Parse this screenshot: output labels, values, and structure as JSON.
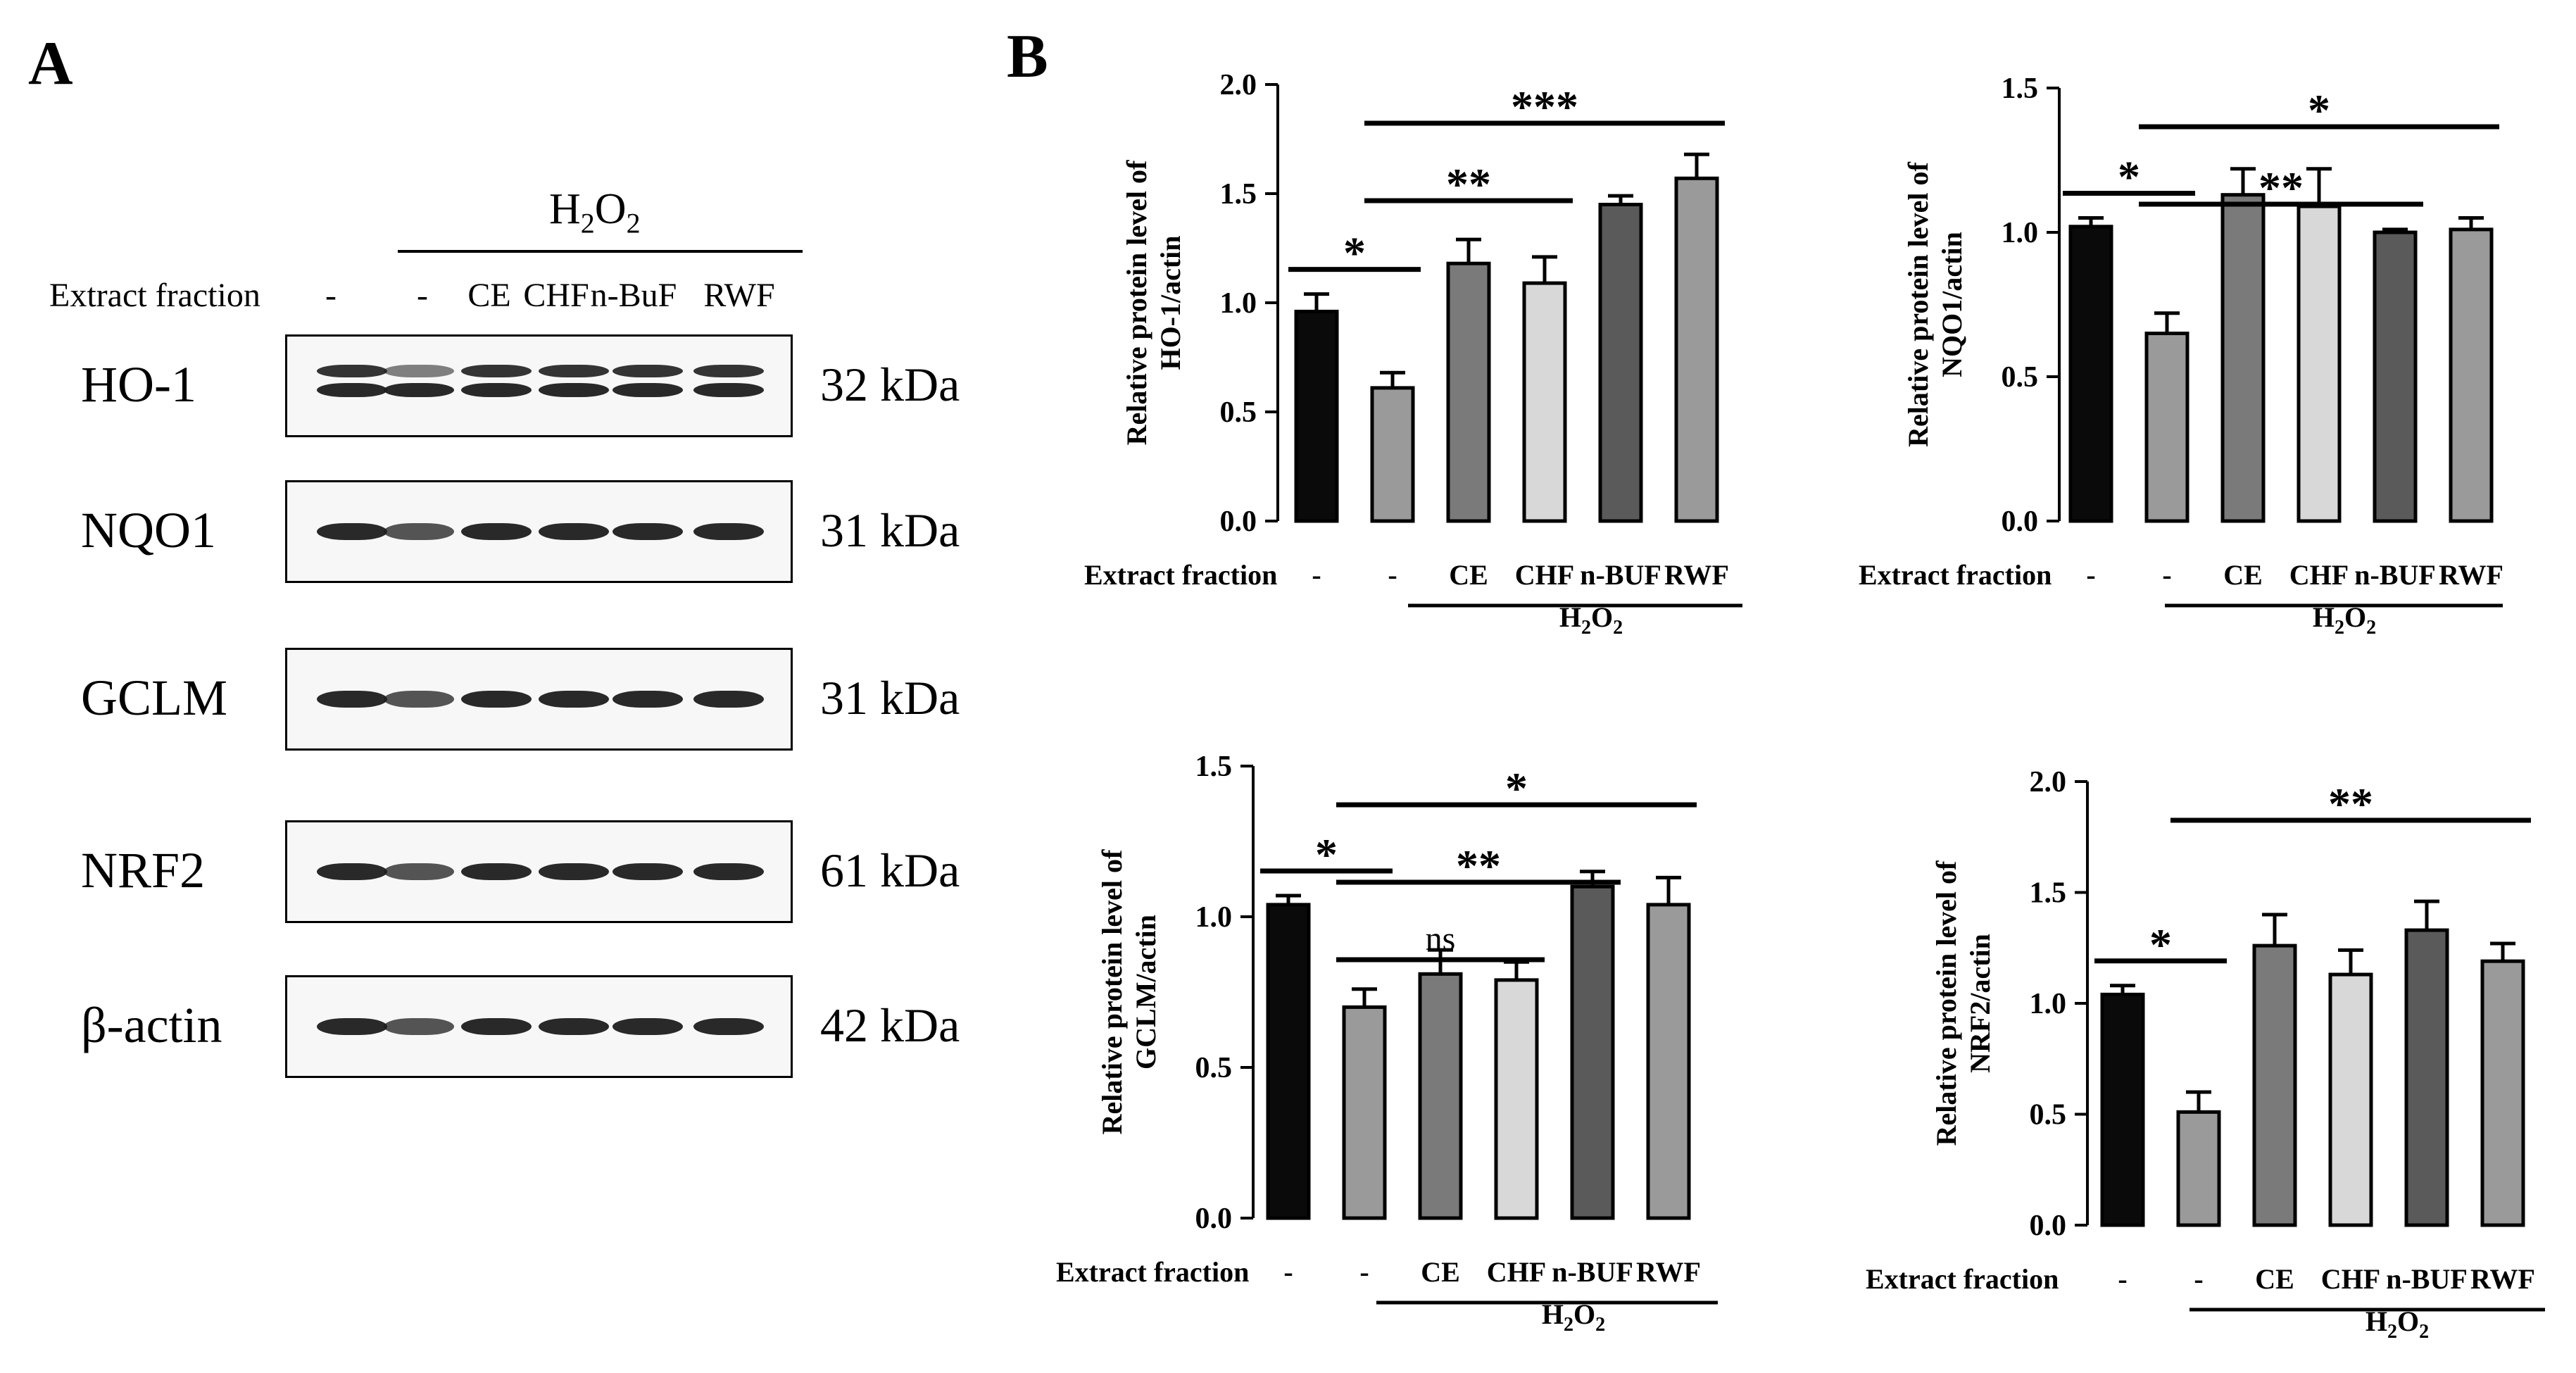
{
  "panels": {
    "a_label": "A",
    "b_label": "B"
  },
  "western_blot": {
    "treatment_label": "H",
    "treatment_sub": "2",
    "treatment_tail": "O",
    "treatment_sub2": "2",
    "extract_label": "Extract fraction",
    "lanes": [
      "-",
      "-",
      "CE",
      "CHF",
      "n-BuF",
      "RWF"
    ],
    "rows": [
      {
        "name": "HO-1",
        "kda": "32 kDa"
      },
      {
        "name": "NQO1",
        "kda": "31 kDa"
      },
      {
        "name": "GCLM",
        "kda": "31 kDa"
      },
      {
        "name": "NRF2",
        "kda": "61 kDa"
      },
      {
        "name": "β-actin",
        "kda": "42 kDa"
      }
    ]
  },
  "chart_data": [
    {
      "type": "bar",
      "ylabel_line1": "Relative protein level of",
      "ylabel_line2": "HO-1/actin",
      "xlabel": "Extract fraction",
      "categories": [
        "-",
        "-",
        "CE",
        "CHF",
        "n-BUF",
        "RWF"
      ],
      "values": [
        0.96,
        0.61,
        1.18,
        1.09,
        1.45,
        1.57
      ],
      "errors": [
        0.08,
        0.07,
        0.11,
        0.12,
        0.04,
        0.11
      ],
      "ylim": [
        0,
        2.0
      ],
      "yticks": [
        "0.0",
        "0.5",
        "1.0",
        "1.5",
        "2.0"
      ],
      "treatment": "H2O2",
      "significance": [
        {
          "from": 0,
          "to": 1,
          "label": "*"
        },
        {
          "from": 1,
          "to": 3,
          "label": "**"
        },
        {
          "from": 1,
          "to": 5,
          "label": "***"
        }
      ]
    },
    {
      "type": "bar",
      "ylabel_line1": "Relative protein level of",
      "ylabel_line2": "NQO1/actin",
      "xlabel": "Extract fraction",
      "categories": [
        "-",
        "-",
        "CE",
        "CHF",
        "n-BUF",
        "RWF"
      ],
      "values": [
        1.02,
        0.65,
        1.13,
        1.09,
        1.0,
        1.01
      ],
      "errors": [
        0.03,
        0.07,
        0.09,
        0.13,
        0.01,
        0.04
      ],
      "ylim": [
        0,
        1.5
      ],
      "yticks": [
        "0.0",
        "0.5",
        "1.0",
        "1.5"
      ],
      "treatment": "H2O2",
      "significance": [
        {
          "from": 0,
          "to": 1,
          "label": "*"
        },
        {
          "from": 1,
          "to": 4,
          "label": "**"
        },
        {
          "from": 1,
          "to": 5,
          "label": "*"
        }
      ]
    },
    {
      "type": "bar",
      "ylabel_line1": "Relative protein level of",
      "ylabel_line2": "GCLM/actin",
      "xlabel": "Extract fraction",
      "categories": [
        "-",
        "-",
        "CE",
        "CHF",
        "n-BUF",
        "RWF"
      ],
      "values": [
        1.04,
        0.7,
        0.81,
        0.79,
        1.1,
        1.04
      ],
      "errors": [
        0.03,
        0.06,
        0.08,
        0.06,
        0.05,
        0.09
      ],
      "ylim": [
        0,
        1.5
      ],
      "yticks": [
        "0.0",
        "0.5",
        "1.0",
        "1.5"
      ],
      "treatment": "H2O2",
      "significance": [
        {
          "from": 0,
          "to": 1,
          "label": "*"
        },
        {
          "from": 1,
          "to": 3,
          "label": "ns"
        },
        {
          "from": 1,
          "to": 4,
          "label": "**"
        },
        {
          "from": 1,
          "to": 5,
          "label": "*"
        }
      ]
    },
    {
      "type": "bar",
      "ylabel_line1": "Relative protein level of",
      "ylabel_line2": "NRF2/actin",
      "xlabel": "Extract fraction",
      "categories": [
        "-",
        "-",
        "CE",
        "CHF",
        "n-BUF",
        "RWF"
      ],
      "values": [
        1.04,
        0.51,
        1.26,
        1.13,
        1.33,
        1.19
      ],
      "errors": [
        0.04,
        0.09,
        0.14,
        0.11,
        0.13,
        0.08
      ],
      "ylim": [
        0,
        2.0
      ],
      "yticks": [
        "0.0",
        "0.5",
        "1.0",
        "1.5",
        "2.0"
      ],
      "treatment": "H2O2",
      "significance": [
        {
          "from": 0,
          "to": 1,
          "label": "*"
        },
        {
          "from": 1,
          "to": 5,
          "label": "**"
        }
      ]
    }
  ],
  "colors": {
    "bars": [
      "#0a0a0a",
      "#9a9a9a",
      "#7a7a7a",
      "#d8d8d8",
      "#5a5a5a",
      "#9a9a9a"
    ],
    "band": "#1e1e1e"
  }
}
